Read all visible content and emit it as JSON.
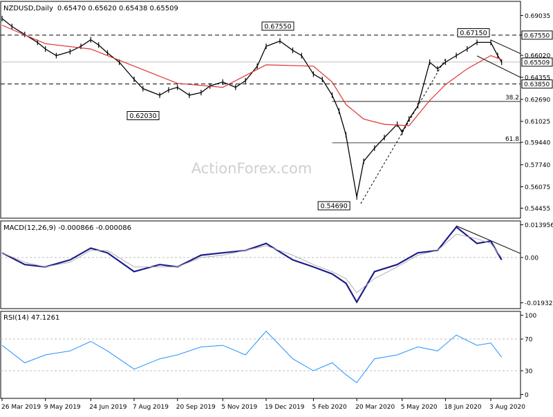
{
  "chart_data": [
    {
      "type": "line",
      "panel": "price",
      "title": "NZDUSD,Daily",
      "ohlc_label": "0.65470 0.65620 0.65438 0.65509",
      "watermark": "ActionForex.com",
      "ylim": [
        0.5375,
        0.7005
      ],
      "y_ticks": [
        "0.69035",
        "0.67550",
        "0.66020",
        "0.64355",
        "0.62690",
        "0.61025",
        "0.59440",
        "0.57740",
        "0.56075",
        "0.54455"
      ],
      "current_price": "0.65509",
      "horizontal_levels": [
        {
          "value": 0.6755,
          "label": "0.67550",
          "style": "dashed"
        },
        {
          "value": 0.6385,
          "label": "0.63850",
          "style": "dashed"
        }
      ],
      "fib_levels": [
        {
          "label": "38.2",
          "value": 0.6253
        },
        {
          "label": "61.8",
          "value": 0.594
        }
      ],
      "annotations": [
        {
          "label": "0.67550",
          "date": "19 Dec 2019",
          "value": 0.6755
        },
        {
          "label": "0.62030",
          "date": "7 Aug 2019",
          "value": 0.6203
        },
        {
          "label": "0.54690",
          "date": "20 Mar 2020",
          "value": 0.5469
        },
        {
          "label": "0.67150",
          "date": "3 Aug 2020",
          "value": 0.6715
        }
      ],
      "series": [
        {
          "key": "price",
          "color": "#000000",
          "x": [
            "26 Mar 2019",
            "5 Apr 2019",
            "18 Apr 2019",
            "1 May 2019",
            "9 May 2019",
            "20 May 2019",
            "3 Jun 2019",
            "14 Jun 2019",
            "24 Jun 2019",
            "2 Jul 2019",
            "11 Jul 2019",
            "23 Jul 2019",
            "7 Aug 2019",
            "16 Aug 2019",
            "2 Sep 2019",
            "11 Sep 2019",
            "20 Sep 2019",
            "2 Oct 2019",
            "14 Oct 2019",
            "23 Oct 2019",
            "5 Nov 2019",
            "18 Nov 2019",
            "28 Nov 2019",
            "10 Dec 2019",
            "19 Dec 2019",
            "2 Jan 2020",
            "15 Jan 2020",
            "24 Jan 2020",
            "5 Feb 2020",
            "14 Feb 2020",
            "24 Feb 2020",
            "2 Mar 2020",
            "9 Mar 2020",
            "20 Mar 2020",
            "27 Mar 2020",
            "7 Apr 2020",
            "17 Apr 2020",
            "30 Apr 2020",
            "5 May 2020",
            "12 May 2020",
            "21 May 2020",
            "2 Jun 2020",
            "10 Jun 2020",
            "18 Jun 2020",
            "29 Jun 2020",
            "10 Jul 2020",
            "20 Jul 2020",
            "3 Aug 2020",
            "10 Aug 2020",
            "14 Aug 2020"
          ],
          "values": [
            0.688,
            0.682,
            0.676,
            0.67,
            0.665,
            0.66,
            0.663,
            0.667,
            0.672,
            0.668,
            0.662,
            0.655,
            0.642,
            0.635,
            0.63,
            0.634,
            0.636,
            0.63,
            0.632,
            0.637,
            0.64,
            0.636,
            0.641,
            0.652,
            0.667,
            0.671,
            0.664,
            0.66,
            0.646,
            0.642,
            0.63,
            0.618,
            0.6,
            0.553,
            0.58,
            0.59,
            0.598,
            0.608,
            0.602,
            0.612,
            0.622,
            0.655,
            0.65,
            0.655,
            0.66,
            0.665,
            0.67,
            0.67,
            0.66,
            0.655
          ]
        },
        {
          "key": "sma",
          "color": "#e03030",
          "x": [
            "26 Mar 2019",
            "9 May 2019",
            "24 Jun 2019",
            "7 Aug 2019",
            "20 Sep 2019",
            "5 Nov 2019",
            "19 Dec 2019",
            "5 Feb 2020",
            "24 Feb 2020",
            "9 Mar 2020",
            "27 Mar 2020",
            "17 Apr 2020",
            "12 May 2020",
            "2 Jun 2020",
            "18 Jun 2020",
            "10 Jul 2020",
            "3 Aug 2020",
            "14 Aug 2020"
          ],
          "values": [
            0.683,
            0.669,
            0.665,
            0.652,
            0.639,
            0.636,
            0.653,
            0.652,
            0.64,
            0.623,
            0.612,
            0.608,
            0.607,
            0.626,
            0.638,
            0.65,
            0.66,
            0.657
          ]
        }
      ]
    },
    {
      "type": "line",
      "panel": "macd",
      "title": "MACD(12,26,9) -0.000866 -0.000086",
      "y_ticks": [
        "0.013956",
        "0.00",
        "-0.019325"
      ],
      "ylim": [
        -0.0215,
        0.0153
      ],
      "series": [
        {
          "key": "macd",
          "color": "#1c1c8c",
          "x": [
            "26 Mar 2019",
            "18 Apr 2019",
            "9 May 2019",
            "3 Jun 2019",
            "24 Jun 2019",
            "11 Jul 2019",
            "7 Aug 2019",
            "2 Sep 2019",
            "20 Sep 2019",
            "14 Oct 2019",
            "5 Nov 2019",
            "28 Nov 2019",
            "19 Dec 2019",
            "15 Jan 2020",
            "5 Feb 2020",
            "24 Feb 2020",
            "9 Mar 2020",
            "20 Mar 2020",
            "7 Apr 2020",
            "30 Apr 2020",
            "21 May 2020",
            "10 Jun 2020",
            "29 Jun 2020",
            "20 Jul 2020",
            "3 Aug 2020",
            "14 Aug 2020"
          ],
          "values": [
            0.002,
            -0.003,
            -0.004,
            -0.001,
            0.004,
            0.002,
            -0.006,
            -0.003,
            -0.004,
            0.001,
            0.002,
            0.003,
            0.006,
            -0.001,
            -0.004,
            -0.007,
            -0.011,
            -0.019,
            -0.006,
            -0.003,
            0.002,
            0.003,
            0.013,
            0.006,
            0.007,
            -0.001
          ]
        },
        {
          "key": "signal",
          "color": "#b0b0b0",
          "x": [
            "26 Mar 2019",
            "18 Apr 2019",
            "9 May 2019",
            "3 Jun 2019",
            "24 Jun 2019",
            "11 Jul 2019",
            "7 Aug 2019",
            "2 Sep 2019",
            "20 Sep 2019",
            "14 Oct 2019",
            "5 Nov 2019",
            "28 Nov 2019",
            "19 Dec 2019",
            "15 Jan 2020",
            "5 Feb 2020",
            "24 Feb 2020",
            "9 Mar 2020",
            "20 Mar 2020",
            "7 Apr 2020",
            "30 Apr 2020",
            "21 May 2020",
            "10 Jun 2020",
            "29 Jun 2020",
            "20 Jul 2020",
            "3 Aug 2020",
            "14 Aug 2020"
          ],
          "values": [
            0.002,
            -0.002,
            -0.004,
            -0.002,
            0.003,
            0.003,
            -0.004,
            -0.004,
            -0.004,
            0.0,
            0.001,
            0.003,
            0.005,
            0.001,
            -0.003,
            -0.006,
            -0.009,
            -0.015,
            -0.009,
            -0.004,
            0.001,
            0.003,
            0.01,
            0.008,
            0.006,
            0.0
          ]
        }
      ]
    },
    {
      "type": "line",
      "panel": "rsi",
      "title": "RSI(14) 47.1261",
      "y_ticks": [
        "100",
        "70",
        "30",
        "0"
      ],
      "ylim": [
        -4,
        104
      ],
      "series": [
        {
          "key": "rsi",
          "color": "#1e90ff",
          "x": [
            "26 Mar 2019",
            "18 Apr 2019",
            "9 May 2019",
            "3 Jun 2019",
            "24 Jun 2019",
            "11 Jul 2019",
            "7 Aug 2019",
            "2 Sep 2019",
            "20 Sep 2019",
            "14 Oct 2019",
            "5 Nov 2019",
            "28 Nov 2019",
            "19 Dec 2019",
            "15 Jan 2020",
            "5 Feb 2020",
            "24 Feb 2020",
            "9 Mar 2020",
            "20 Mar 2020",
            "7 Apr 2020",
            "30 Apr 2020",
            "21 May 2020",
            "10 Jun 2020",
            "29 Jun 2020",
            "20 Jul 2020",
            "3 Aug 2020",
            "14 Aug 2020"
          ],
          "values": [
            62,
            40,
            50,
            55,
            67,
            55,
            32,
            45,
            50,
            60,
            62,
            50,
            80,
            45,
            30,
            40,
            25,
            15,
            45,
            50,
            60,
            55,
            75,
            62,
            65,
            47
          ]
        }
      ]
    }
  ],
  "x_axis": {
    "labels": [
      "26 Mar 2019",
      "9 May 2019",
      "24 Jun 2019",
      "7 Aug 2019",
      "20 Sep 2019",
      "5 Nov 2019",
      "19 Dec 2019",
      "5 Feb 2020",
      "20 Mar 2020",
      "5 May 2020",
      "18 Jun 2020",
      "3 Aug 2020"
    ]
  }
}
